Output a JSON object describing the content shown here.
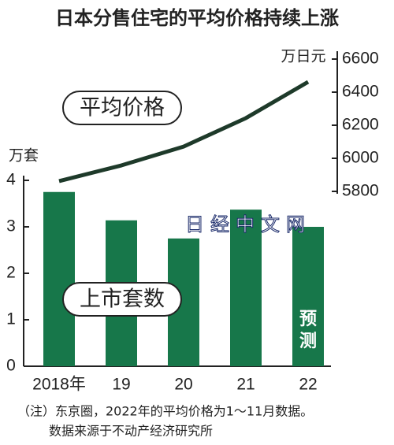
{
  "chart_data": {
    "type": "bar-line",
    "title": "日本分售住宅的平均价格持续上涨",
    "categories": [
      "2018年",
      "19",
      "20",
      "21",
      "22"
    ],
    "ylabel": "万套",
    "y2label": "万日元",
    "ylim": [
      0,
      4
    ],
    "yticks": [
      0,
      1,
      2,
      3,
      4
    ],
    "y2lim": [
      5800,
      6600
    ],
    "y2ticks": [
      5800,
      6000,
      6200,
      6400,
      6600
    ],
    "series": [
      {
        "name": "上市套数",
        "type": "bar",
        "color": "#17774a",
        "values": [
          3.75,
          3.14,
          2.75,
          3.37,
          3.0
        ]
      },
      {
        "name": "平均价格",
        "type": "line",
        "axis": "y2",
        "color": "#1e3a2a",
        "values": [
          5862,
          5957,
          6071,
          6243,
          6462
        ]
      }
    ],
    "annotations": [
      "预测"
    ],
    "watermark": "日经中文网",
    "notes": [
      "（注）东京圈，2022年的平均价格为1～11月数据。",
      "数据来源于不动产经济研究所"
    ]
  }
}
